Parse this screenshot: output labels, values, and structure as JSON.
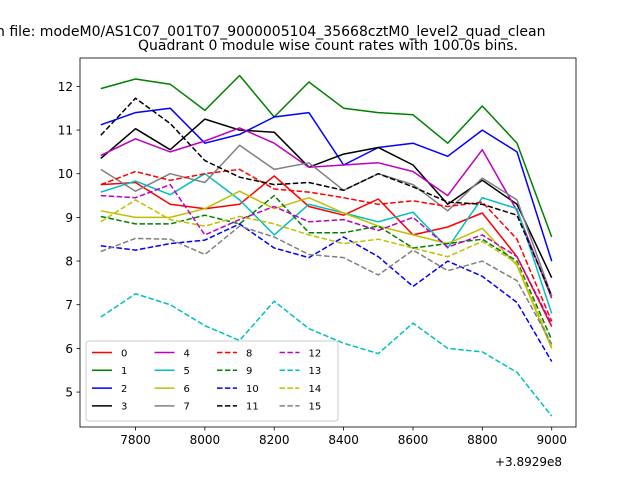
{
  "figure": {
    "suptitle": "n file: modeM0/AS1C07_001T07_9000005104_35668cztM0_level2_quad_clean",
    "title": "Quadrant 0 module wise count rates with 100.0s bins.",
    "x_offset_label": "+3.8929e8"
  },
  "chart_data": {
    "type": "line",
    "title": "Quadrant 0 module wise count rates with 100.0s bins.",
    "xlabel": "",
    "ylabel": "",
    "x_offset_label": "+3.8929e8",
    "xlim": [
      7640,
      9070
    ],
    "ylim": [
      4.2,
      12.65
    ],
    "xticks": [
      7800,
      8000,
      8200,
      8400,
      8600,
      8800,
      9000
    ],
    "yticks": [
      5,
      6,
      7,
      8,
      9,
      10,
      11,
      12
    ],
    "grid": false,
    "legend_position": "lower-left",
    "x": [
      7700,
      7800,
      7900,
      8000,
      8100,
      8200,
      8300,
      8400,
      8500,
      8600,
      8700,
      8800,
      8900,
      9000
    ],
    "series": [
      {
        "name": "0",
        "color": "#ff0000",
        "dash": "solid",
        "values": [
          9.75,
          9.8,
          9.3,
          9.2,
          9.3,
          9.95,
          9.25,
          9.05,
          9.42,
          8.6,
          8.78,
          9.1,
          8.1,
          6.5
        ]
      },
      {
        "name": "1",
        "color": "#008000",
        "dash": "solid",
        "values": [
          11.95,
          12.17,
          12.05,
          11.45,
          12.25,
          11.3,
          12.1,
          11.5,
          11.4,
          11.35,
          10.7,
          11.55,
          10.7,
          8.55
        ]
      },
      {
        "name": "2",
        "color": "#0000ff",
        "dash": "solid",
        "values": [
          11.12,
          11.4,
          11.5,
          10.7,
          10.9,
          11.3,
          11.4,
          10.2,
          10.6,
          10.7,
          10.4,
          11.0,
          10.5,
          8.0
        ]
      },
      {
        "name": "3",
        "color": "#000000",
        "dash": "solid",
        "values": [
          10.35,
          11.03,
          10.55,
          11.25,
          11.0,
          10.95,
          10.15,
          10.45,
          10.6,
          10.2,
          9.3,
          9.85,
          9.3,
          7.62
        ]
      },
      {
        "name": "4",
        "color": "#bf00bf",
        "dash": "solid",
        "values": [
          10.42,
          10.8,
          10.5,
          10.75,
          11.05,
          10.7,
          10.15,
          10.2,
          10.25,
          10.05,
          9.5,
          10.55,
          9.15,
          7.15
        ]
      },
      {
        "name": "5",
        "color": "#00bfbf",
        "dash": "solid",
        "values": [
          9.58,
          9.83,
          9.52,
          10.0,
          9.4,
          8.6,
          9.3,
          9.1,
          8.9,
          9.12,
          8.3,
          9.45,
          9.2,
          6.8
        ]
      },
      {
        "name": "6",
        "color": "#bfbf00",
        "dash": "solid",
        "values": [
          9.15,
          9.0,
          9.0,
          9.2,
          9.6,
          9.2,
          9.45,
          9.1,
          8.8,
          8.6,
          8.4,
          8.75,
          7.9,
          6.0
        ]
      },
      {
        "name": "7",
        "color": "#808080",
        "dash": "solid",
        "values": [
          10.1,
          9.6,
          10.0,
          9.8,
          10.65,
          10.1,
          10.25,
          9.62,
          10.0,
          9.75,
          9.15,
          9.9,
          9.4,
          7.2
        ]
      },
      {
        "name": "8",
        "color": "#ff0000",
        "dash": "dashed",
        "values": [
          9.75,
          10.05,
          9.85,
          10.0,
          10.1,
          9.65,
          9.58,
          9.45,
          9.3,
          9.38,
          9.25,
          9.35,
          8.5,
          6.62
        ]
      },
      {
        "name": "9",
        "color": "#008000",
        "dash": "dashed",
        "values": [
          9.02,
          8.85,
          8.85,
          9.05,
          8.85,
          9.5,
          8.65,
          8.65,
          8.8,
          8.3,
          8.4,
          8.5,
          8.0,
          6.2
        ]
      },
      {
        "name": "10",
        "color": "#0000ff",
        "dash": "dashed",
        "values": [
          8.35,
          8.25,
          8.4,
          8.48,
          8.85,
          8.3,
          8.08,
          8.55,
          8.1,
          7.42,
          8.0,
          7.65,
          7.05,
          5.7
        ]
      },
      {
        "name": "11",
        "color": "#000000",
        "dash": "dashed",
        "values": [
          10.88,
          11.73,
          11.15,
          10.3,
          9.92,
          9.75,
          9.8,
          9.62,
          10.0,
          9.7,
          9.35,
          9.3,
          9.05,
          7.2
        ]
      },
      {
        "name": "12",
        "color": "#bf00bf",
        "dash": "dashed",
        "values": [
          9.5,
          9.45,
          9.75,
          8.6,
          8.95,
          9.25,
          8.9,
          8.95,
          8.7,
          9.0,
          8.32,
          8.6,
          8.1,
          6.55
        ]
      },
      {
        "name": "13",
        "color": "#00bfbf",
        "dash": "dashed",
        "values": [
          6.72,
          7.25,
          7.0,
          6.52,
          6.18,
          7.08,
          6.45,
          6.12,
          5.88,
          6.58,
          6.0,
          5.92,
          5.45,
          4.45
        ]
      },
      {
        "name": "14",
        "color": "#bfbf00",
        "dash": "dashed",
        "values": [
          8.9,
          9.4,
          8.95,
          8.8,
          9.02,
          8.85,
          8.6,
          8.4,
          8.5,
          8.3,
          8.1,
          8.45,
          7.95,
          6.05
        ]
      },
      {
        "name": "15",
        "color": "#808080",
        "dash": "dashed",
        "values": [
          8.22,
          8.52,
          8.5,
          8.15,
          8.8,
          8.55,
          8.15,
          8.08,
          7.68,
          8.25,
          7.78,
          8.0,
          7.55,
          6.1
        ]
      }
    ]
  }
}
